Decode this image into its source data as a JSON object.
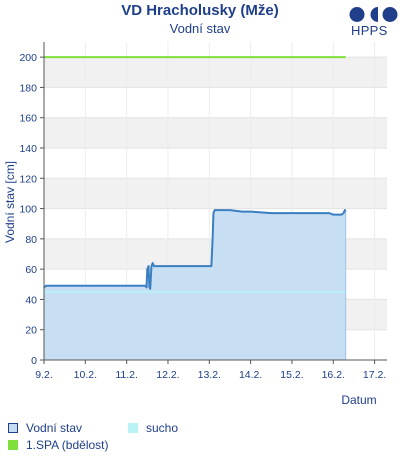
{
  "header": {
    "title": "VD Hracholusky (Mže)",
    "subtitle": "Vodní stav",
    "logo_text": "HPPS"
  },
  "chart_data": {
    "type": "line",
    "xlabel": "Datum",
    "ylabel": "Vodní stav [cm]",
    "ylim": [
      0,
      210
    ],
    "xlim": [
      9.0,
      17.3
    ],
    "y_ticks": [
      0,
      20,
      40,
      60,
      80,
      100,
      120,
      140,
      160,
      180,
      200
    ],
    "x_ticks": [
      {
        "value": 9,
        "label": "9.2."
      },
      {
        "value": 10,
        "label": "10.2."
      },
      {
        "value": 11,
        "label": "11.2."
      },
      {
        "value": 12,
        "label": "12.2."
      },
      {
        "value": 13,
        "label": "13.2."
      },
      {
        "value": 14,
        "label": "14.2."
      },
      {
        "value": 15,
        "label": "15.2."
      },
      {
        "value": 16,
        "label": "16.2."
      },
      {
        "value": 17,
        "label": "17.2."
      }
    ],
    "series": [
      {
        "name": "Vodní stav",
        "color": "#3a7fc1",
        "fill": "#c5dcf1",
        "points": [
          [
            9.0,
            48
          ],
          [
            9.05,
            49
          ],
          [
            9.5,
            49
          ],
          [
            10.0,
            49
          ],
          [
            10.5,
            49
          ],
          [
            11.0,
            49
          ],
          [
            11.45,
            49
          ],
          [
            11.48,
            48
          ],
          [
            11.5,
            60
          ],
          [
            11.53,
            62
          ],
          [
            11.55,
            48
          ],
          [
            11.57,
            47
          ],
          [
            11.6,
            62
          ],
          [
            11.63,
            64
          ],
          [
            11.66,
            62
          ],
          [
            11.7,
            62
          ],
          [
            12.0,
            62
          ],
          [
            12.5,
            62
          ],
          [
            12.9,
            62
          ],
          [
            13.0,
            62
          ],
          [
            13.05,
            62
          ],
          [
            13.08,
            80
          ],
          [
            13.1,
            97
          ],
          [
            13.13,
            99
          ],
          [
            13.2,
            99
          ],
          [
            13.5,
            99
          ],
          [
            13.8,
            98
          ],
          [
            14.0,
            98
          ],
          [
            14.5,
            97
          ],
          [
            15.0,
            97
          ],
          [
            15.5,
            97
          ],
          [
            15.9,
            97
          ],
          [
            16.0,
            96
          ],
          [
            16.1,
            96
          ],
          [
            16.2,
            96
          ],
          [
            16.25,
            97
          ],
          [
            16.28,
            99
          ],
          [
            16.3,
            98
          ]
        ]
      },
      {
        "name": "sucho",
        "color": "#b8f2f6",
        "value": 45,
        "x_range": [
          9.0,
          16.3
        ]
      },
      {
        "name": "1.SPA (bdělost)",
        "color": "#7fe03a",
        "value": 200,
        "x_range": [
          9.0,
          16.3
        ]
      }
    ],
    "grid": true,
    "legend_position": "bottom-left"
  },
  "legend": {
    "items": [
      {
        "label": "Vodní stav",
        "swatch": "outline",
        "color": "#1f3f8a",
        "fill": "#c5dcf1"
      },
      {
        "label": "sucho",
        "swatch": "fill",
        "color": "#b8f2f6"
      },
      {
        "label": "1.SPA (bdělost)",
        "swatch": "fill",
        "color": "#7fe03a"
      }
    ]
  }
}
